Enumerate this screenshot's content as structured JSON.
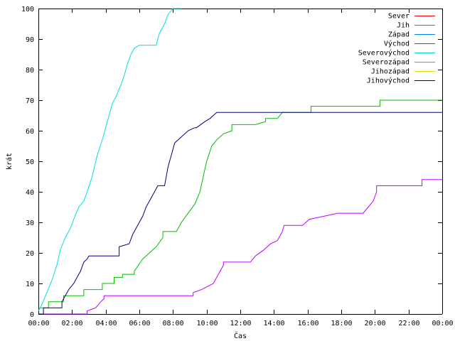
{
  "chart_data": {
    "type": "line",
    "xlabel": "Čas",
    "ylabel": "krát",
    "ylim": [
      0,
      100
    ],
    "yticks": [
      0,
      10,
      20,
      30,
      40,
      50,
      60,
      70,
      80,
      90,
      100
    ],
    "xlim": [
      0,
      24
    ],
    "xticks": [
      "00:00",
      "02:00",
      "04:00",
      "06:00",
      "08:00",
      "10:00",
      "12:00",
      "14:00",
      "16:00",
      "18:00",
      "20:00",
      "22:00",
      "00:00"
    ],
    "legend_position": "top-right",
    "series": [
      {
        "name": "Sever",
        "color": "#ff0000",
        "x": [],
        "y": []
      },
      {
        "name": "Jih",
        "color": "#00c000",
        "x": [
          0,
          0.6,
          0.6,
          1.5,
          1.5,
          2.7,
          2.7,
          3.8,
          3.8,
          4.5,
          4.5,
          5.0,
          5.0,
          5.7,
          5.7,
          6.2,
          6.6,
          7.0,
          7.4,
          7.4,
          8.2,
          8.5,
          8.9,
          9.3,
          9.6,
          9.8,
          10.0,
          10.3,
          10.6,
          11.0,
          11.5,
          11.5,
          12.9,
          13.5,
          13.5,
          14.2,
          14.5,
          14.5,
          16.2,
          16.2,
          20.3,
          20.3,
          24
        ],
        "y": [
          2,
          2,
          4,
          4,
          6,
          6,
          8,
          8,
          10,
          10,
          12,
          12,
          13,
          13,
          14,
          18,
          20,
          22,
          25,
          27,
          27,
          30,
          33,
          36,
          40,
          45,
          50,
          55,
          57,
          59,
          60,
          62,
          62,
          63,
          64,
          64,
          66,
          66,
          66,
          68,
          68,
          70,
          70
        ]
      },
      {
        "name": "Západ",
        "color": "#0080ff",
        "x": [],
        "y": []
      },
      {
        "name": "Východ",
        "color": "#c000ff",
        "x": [
          0,
          2.9,
          2.9,
          3.4,
          3.7,
          3.9,
          3.9,
          9.2,
          9.2,
          9.7,
          10.4,
          10.8,
          11.0,
          11.0,
          12.6,
          12.9,
          13.4,
          13.8,
          14.2,
          14.5,
          14.6,
          15.2,
          15.2,
          15.7,
          16.1,
          16.1,
          17.8,
          17.8,
          19.3,
          19.6,
          19.9,
          20.1,
          20.1,
          21.6,
          21.6,
          22.8,
          22.8,
          24
        ],
        "y": [
          0,
          0,
          1,
          2,
          4,
          5,
          6,
          6,
          7,
          8,
          10,
          14,
          16,
          17,
          17,
          19,
          21,
          23,
          24,
          27,
          29,
          29,
          29,
          29,
          31,
          31,
          33,
          33,
          33,
          35,
          37,
          40,
          42,
          42,
          42,
          42,
          44,
          44
        ]
      },
      {
        "name": "Severovýchod",
        "color": "#00e0e0",
        "x": [
          0,
          0.2,
          0.5,
          0.8,
          1.1,
          1.3,
          1.6,
          1.9,
          2.1,
          2.4,
          2.7,
          2.9,
          3.2,
          3.5,
          3.8,
          4.1,
          4.4,
          4.6,
          4.9,
          5.1,
          5.3,
          5.5,
          5.7,
          6.0,
          6.2,
          6.5,
          7.0,
          7.2,
          7.5,
          7.7,
          8.0,
          8.0,
          8.5
        ],
        "y": [
          1,
          3,
          7,
          11,
          16,
          21,
          25,
          28,
          31,
          35,
          37,
          40,
          45,
          52,
          57,
          63,
          69,
          71,
          75,
          78,
          82,
          85,
          87,
          88,
          88,
          88,
          88,
          92,
          95,
          98,
          100,
          100,
          100
        ]
      },
      {
        "name": "Severozápad",
        "color": "#c08040",
        "x": [],
        "y": []
      },
      {
        "name": "Jihozápad",
        "color": "#e0e000",
        "x": [],
        "y": []
      },
      {
        "name": "Jihovýchod",
        "color": "#000080",
        "x": [
          0,
          0.3,
          0.3,
          1.4,
          1.4,
          1.8,
          2.1,
          2.3,
          2.5,
          2.7,
          2.9,
          3.0,
          3.0,
          4.8,
          4.8,
          5.4,
          5.6,
          5.9,
          6.2,
          6.4,
          6.7,
          6.9,
          7.1,
          7.1,
          7.5,
          7.7,
          7.9,
          8.1,
          8.5,
          8.9,
          9.3,
          9.4,
          9.4,
          9.9,
          10.2,
          10.4,
          10.6,
          10.6,
          24
        ],
        "y": [
          0,
          0,
          2,
          2,
          4,
          8,
          10,
          12,
          14,
          17,
          18,
          19,
          19,
          19,
          22,
          23,
          26,
          29,
          32,
          35,
          38,
          40,
          42,
          42,
          42,
          48,
          52,
          56,
          58,
          60,
          61,
          61,
          61,
          63,
          64,
          65,
          66,
          66,
          66
        ]
      }
    ]
  }
}
